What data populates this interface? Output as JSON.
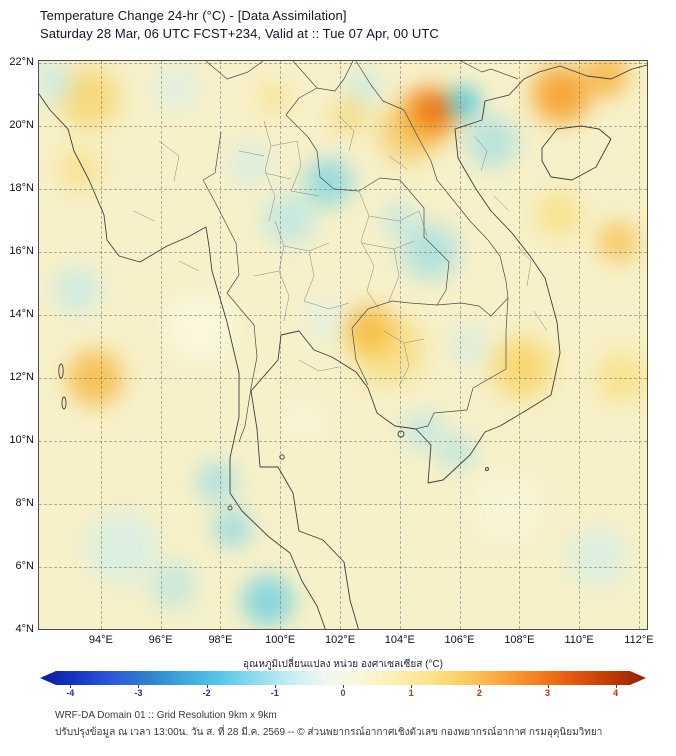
{
  "header": {
    "title": "Temperature Change 24-hr (°C) - [Data Assimilation]",
    "subtitle": "Saturday 28 Mar, 06 UTC FCST+234, Valid at :: Tue 07 Apr, 00 UTC"
  },
  "axes": {
    "lat_ticks": [
      {
        "label": "22°N",
        "deg": 22
      },
      {
        "label": "20°N",
        "deg": 20
      },
      {
        "label": "18°N",
        "deg": 18
      },
      {
        "label": "16°N",
        "deg": 16
      },
      {
        "label": "14°N",
        "deg": 14
      },
      {
        "label": "12°N",
        "deg": 12
      },
      {
        "label": "10°N",
        "deg": 10
      },
      {
        "label": "8°N",
        "deg": 8
      },
      {
        "label": "6°N",
        "deg": 6
      },
      {
        "label": "4°N",
        "deg": 4
      }
    ],
    "lon_ticks": [
      {
        "label": "94°E",
        "deg": 94
      },
      {
        "label": "96°E",
        "deg": 96
      },
      {
        "label": "98°E",
        "deg": 98
      },
      {
        "label": "100°E",
        "deg": 100
      },
      {
        "label": "102°E",
        "deg": 102
      },
      {
        "label": "104°E",
        "deg": 104
      },
      {
        "label": "106°E",
        "deg": 106
      },
      {
        "label": "108°E",
        "deg": 108
      },
      {
        "label": "110°E",
        "deg": 110
      },
      {
        "label": "112°E",
        "deg": 112
      }
    ]
  },
  "colorbar": {
    "label": "อุณหภูมิเปลี่ยนแปลง หน่วย องศาเซลเซียส (°C)",
    "range": [
      -4,
      4
    ],
    "ticks": [
      {
        "label": "-4",
        "color": "#1c2fb8"
      },
      {
        "label": "-3",
        "color": "#1c2fb8"
      },
      {
        "label": "-2",
        "color": "#1c2fb8"
      },
      {
        "label": "-1",
        "color": "#1c2fb8"
      },
      {
        "label": "0",
        "color": "#555555"
      },
      {
        "label": "1",
        "color": "#c23305"
      },
      {
        "label": "2",
        "color": "#c23305"
      },
      {
        "label": "3",
        "color": "#c23305"
      },
      {
        "label": "4",
        "color": "#c23305"
      }
    ],
    "gradient": [
      "#0a1e96",
      "#1535c8",
      "#2b59d8",
      "#2f7fd0",
      "#3fa6dc",
      "#52c6e8",
      "#8adcee",
      "#c5edf4",
      "#eef8f0",
      "#fbf6d8",
      "#fdeeb0",
      "#fde289",
      "#fdc95f",
      "#fba43a",
      "#f57d1e",
      "#e2560e",
      "#c03a06",
      "#971f03"
    ]
  },
  "footer": {
    "line1": "WRF-DA Domain 01 :: Grid Resolution 9km x 9km",
    "line2": "ปรับปรุงข้อมูล ณ เวลา 13:00น. วัน ส. ที่ 28 มี.ค. 2569 -- © ส่วนพยากรณ์อากาศเชิงตัวเลข กองพยากรณ์อากาศ กรมอุตุนิยมวิทยา"
  },
  "chart_data": {
    "type": "heatmap",
    "title": "Temperature Change 24-hr (°C) - [Data Assimilation]",
    "units": "°C",
    "lon_range": [
      91.93,
      112.27
    ],
    "lat_range": [
      4.02,
      22.06
    ],
    "colorbar_range": [
      -4,
      4
    ],
    "background_value_c": 0.2,
    "base_color": "#f7f1c9",
    "anomalies": [
      {
        "region": "nw-vietnam-warm-halo",
        "lon": 105.0,
        "lat": 20.4,
        "radius_deg": 1.15,
        "value_c": 3.0,
        "color": "#ef7607",
        "opacity": 0.95
      },
      {
        "region": "nw-vietnam-warm-core",
        "lon": 105.05,
        "lat": 20.45,
        "radius_deg": 0.55,
        "value_c": 3.8,
        "color": "#dd4f03",
        "opacity": 0.9
      },
      {
        "region": "n-laos-warm",
        "lon": 104.3,
        "lat": 19.8,
        "radius_deg": 1.3,
        "value_c": 1.5,
        "color": "#f7b32c",
        "opacity": 0.65
      },
      {
        "region": "guangxi-warm",
        "lon": 109.4,
        "lat": 21.0,
        "radius_deg": 1.25,
        "value_c": 2.5,
        "color": "#f6920f",
        "opacity": 0.9
      },
      {
        "region": "leizhou-warm",
        "lon": 110.9,
        "lat": 21.6,
        "radius_deg": 0.95,
        "value_c": 2.0,
        "color": "#f7a51f",
        "opacity": 0.8
      },
      {
        "region": "hanoi-coast-cool",
        "lon": 106.15,
        "lat": 20.75,
        "radius_deg": 0.7,
        "value_c": -1.5,
        "color": "#2fc0dd",
        "opacity": 0.85
      },
      {
        "region": "gulf-tonkin-cool",
        "lon": 107.1,
        "lat": 19.5,
        "radius_deg": 1.1,
        "value_c": -0.8,
        "color": "#8fdaea",
        "opacity": 0.7
      },
      {
        "region": "w-myanmar-warm",
        "lon": 93.6,
        "lat": 20.9,
        "radius_deg": 1.3,
        "value_c": 1.2,
        "color": "#f7c94a",
        "opacity": 0.7
      },
      {
        "region": "rakhine-warm",
        "lon": 93.3,
        "lat": 18.6,
        "radius_deg": 0.95,
        "value_c": 0.8,
        "color": "#f9d65e",
        "opacity": 0.55
      },
      {
        "region": "nw-corner-cool",
        "lon": 92.4,
        "lat": 21.4,
        "radius_deg": 0.9,
        "value_c": -0.6,
        "color": "#bfe9f1",
        "opacity": 0.7
      },
      {
        "region": "shan-cool",
        "lon": 96.5,
        "lat": 21.2,
        "radius_deg": 1.0,
        "value_c": -0.5,
        "color": "#cfeff4",
        "opacity": 0.6
      },
      {
        "region": "phongsali-cool",
        "lon": 102.8,
        "lat": 21.2,
        "radius_deg": 0.8,
        "value_c": -0.6,
        "color": "#b9e7f0",
        "opacity": 0.6
      },
      {
        "region": "n-thailand-laos-cool",
        "lon": 101.6,
        "lat": 18.2,
        "radius_deg": 1.05,
        "value_c": -1.2,
        "color": "#6fd2e6",
        "opacity": 0.8
      },
      {
        "region": "c-thailand-cool",
        "lon": 100.3,
        "lat": 17.0,
        "radius_deg": 1.1,
        "value_c": -0.8,
        "color": "#a5e2ee",
        "opacity": 0.7
      },
      {
        "region": "lampang-cool",
        "lon": 99.0,
        "lat": 18.8,
        "radius_deg": 0.9,
        "value_c": -0.5,
        "color": "#c2eaf1",
        "opacity": 0.6
      },
      {
        "region": "s-laos-cool",
        "lon": 105.0,
        "lat": 16.0,
        "radius_deg": 1.2,
        "value_c": -1.0,
        "color": "#8cdae9",
        "opacity": 0.75
      },
      {
        "region": "sakon-cool",
        "lon": 104.0,
        "lat": 17.0,
        "radius_deg": 0.8,
        "value_c": -0.7,
        "color": "#abe3ee",
        "opacity": 0.6
      },
      {
        "region": "nw-cambodia-warm-core",
        "lon": 103.0,
        "lat": 13.5,
        "radius_deg": 1.05,
        "value_c": 2.0,
        "color": "#f5a51e",
        "opacity": 0.8
      },
      {
        "region": "cambodia-warm-halo",
        "lon": 103.6,
        "lat": 12.9,
        "radius_deg": 1.5,
        "value_c": 1.0,
        "color": "#f8ca40",
        "opacity": 0.55
      },
      {
        "region": "s-vietnam-coast-warm",
        "lon": 108.1,
        "lat": 12.3,
        "radius_deg": 1.3,
        "value_c": 1.2,
        "color": "#f8c83c",
        "opacity": 0.7
      },
      {
        "region": "bay-bengal-warm",
        "lon": 93.8,
        "lat": 12.0,
        "radius_deg": 1.2,
        "value_c": 1.8,
        "color": "#f6ad26",
        "opacity": 0.8
      },
      {
        "region": "bay-bengal-cool",
        "lon": 93.2,
        "lat": 14.8,
        "radius_deg": 1.0,
        "value_c": -0.7,
        "color": "#b7e7f0",
        "opacity": 0.7
      },
      {
        "region": "peninsula-cool-1",
        "lon": 97.9,
        "lat": 8.7,
        "radius_deg": 0.9,
        "value_c": -1.0,
        "color": "#8cdae9",
        "opacity": 0.7
      },
      {
        "region": "peninsula-cool-2",
        "lon": 98.4,
        "lat": 7.2,
        "radius_deg": 0.85,
        "value_c": -1.2,
        "color": "#7cd6e7",
        "opacity": 0.75
      },
      {
        "region": "s-peninsula-cool",
        "lon": 99.6,
        "lat": 4.9,
        "radius_deg": 1.1,
        "value_c": -1.5,
        "color": "#5fcde2",
        "opacity": 0.85
      },
      {
        "region": "sw-sea-cool",
        "lon": 94.7,
        "lat": 6.6,
        "radius_deg": 1.5,
        "value_c": -0.6,
        "color": "#c8edf2",
        "opacity": 0.7
      },
      {
        "region": "aceh-cool",
        "lon": 96.4,
        "lat": 5.4,
        "radius_deg": 1.0,
        "value_c": -0.8,
        "color": "#9fe0ec",
        "opacity": 0.6
      },
      {
        "region": "se-sea-cool",
        "lon": 110.6,
        "lat": 6.3,
        "radius_deg": 1.25,
        "value_c": -0.5,
        "color": "#c8edf2",
        "opacity": 0.65
      },
      {
        "region": "e-sea-warm-1",
        "lon": 109.3,
        "lat": 17.2,
        "radius_deg": 1.0,
        "value_c": 0.9,
        "color": "#f9d75c",
        "opacity": 0.6
      },
      {
        "region": "e-sea-warm-2",
        "lon": 111.3,
        "lat": 16.3,
        "radius_deg": 0.9,
        "value_c": 1.6,
        "color": "#f6b52c",
        "opacity": 0.7
      },
      {
        "region": "e-sea-warm-3",
        "lon": 111.4,
        "lat": 12.0,
        "radius_deg": 1.1,
        "value_c": 0.9,
        "color": "#f9d75c",
        "opacity": 0.6
      },
      {
        "region": "s-cambodia-cool",
        "lon": 104.8,
        "lat": 10.3,
        "radius_deg": 0.9,
        "value_c": -0.7,
        "color": "#abe3ee",
        "opacity": 0.65
      },
      {
        "region": "mekong-delta-cool",
        "lon": 105.9,
        "lat": 9.6,
        "radius_deg": 0.8,
        "value_c": -0.6,
        "color": "#9fe0ec",
        "opacity": 0.6
      },
      {
        "region": "ne-cambodia-cool",
        "lon": 106.3,
        "lat": 13.0,
        "radius_deg": 0.9,
        "value_c": -0.4,
        "color": "#c2eaf1",
        "opacity": 0.5
      },
      {
        "region": "gulf-top-cool",
        "lon": 101.5,
        "lat": 13.9,
        "radius_deg": 0.9,
        "value_c": -0.4,
        "color": "#d4f0f5",
        "opacity": 0.5
      },
      {
        "region": "n-laos-warm-spot",
        "lon": 102.3,
        "lat": 20.3,
        "radius_deg": 0.8,
        "value_c": 0.8,
        "color": "#f7c94a",
        "opacity": 0.55
      },
      {
        "region": "chiang-rai-warm",
        "lon": 99.8,
        "lat": 20.9,
        "radius_deg": 0.7,
        "value_c": 0.6,
        "color": "#f9d75c",
        "opacity": 0.5
      },
      {
        "region": "andaman-neutral",
        "lon": 97.3,
        "lat": 13.6,
        "radius_deg": 1.4,
        "value_c": 0.1,
        "color": "#fdfbea",
        "opacity": 0.75
      },
      {
        "region": "se-neutral",
        "lon": 107.6,
        "lat": 7.9,
        "radius_deg": 1.5,
        "value_c": 0.1,
        "color": "#fbf8e2",
        "opacity": 0.65
      },
      {
        "region": "gulf-neutral",
        "lon": 100.8,
        "lat": 10.6,
        "radius_deg": 1.0,
        "value_c": 0.1,
        "color": "#fbf8e2",
        "opacity": 0.5
      }
    ]
  }
}
